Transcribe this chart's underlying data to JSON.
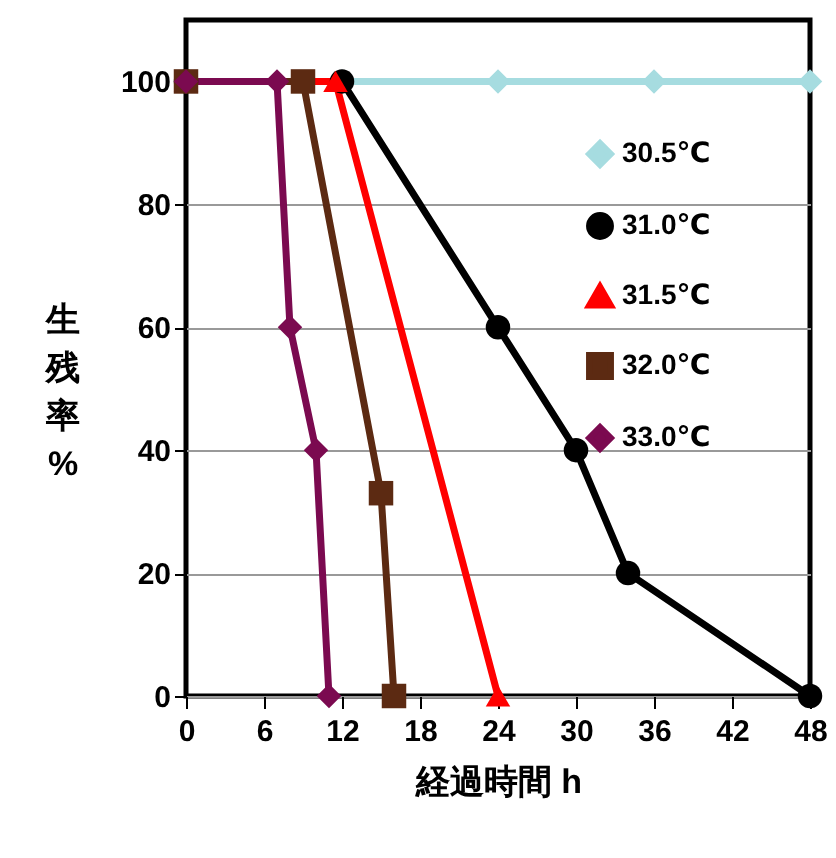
{
  "chart_data": {
    "type": "line",
    "xlabel": "経過時間 h",
    "ylabel": "生残率 %",
    "xlim": [
      0,
      48
    ],
    "ylim": [
      0,
      110
    ],
    "xticks": [
      0,
      6,
      12,
      18,
      24,
      30,
      36,
      42,
      48
    ],
    "yticks": [
      0,
      20,
      40,
      60,
      80,
      100
    ],
    "grid": "y",
    "legend": "right",
    "series": [
      {
        "name": "30.5℃",
        "color": "#a6dce0",
        "marker": "diamond",
        "x": [
          0,
          12,
          24,
          36,
          48
        ],
        "values": [
          100,
          100,
          100,
          100,
          100
        ]
      },
      {
        "name": "31.0℃",
        "color": "#000000",
        "marker": "circle",
        "x": [
          0,
          12,
          24,
          30,
          34,
          48
        ],
        "values": [
          100,
          100,
          60,
          40,
          20,
          0
        ]
      },
      {
        "name": "31.5℃",
        "color": "#ff0000",
        "marker": "triangle",
        "x": [
          0,
          11.5,
          24
        ],
        "values": [
          100,
          100,
          0
        ]
      },
      {
        "name": "32.0℃",
        "color": "#5c2a12",
        "marker": "square",
        "x": [
          0,
          9,
          15,
          16
        ],
        "values": [
          100,
          100,
          33,
          0
        ]
      },
      {
        "name": "33.0℃",
        "color": "#7b0a50",
        "marker": "diamond",
        "x": [
          0,
          7,
          8,
          10,
          11
        ],
        "values": [
          100,
          100,
          60,
          40,
          0
        ]
      }
    ]
  }
}
